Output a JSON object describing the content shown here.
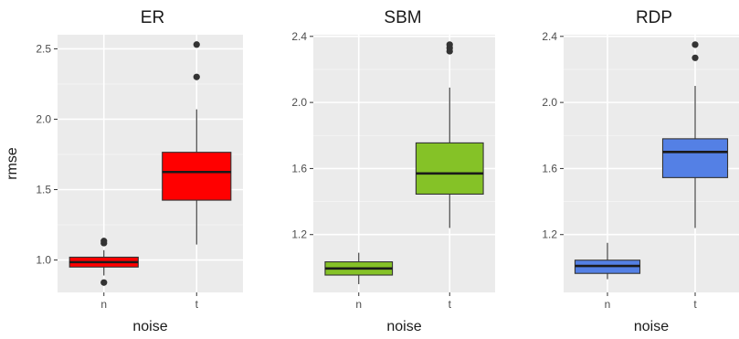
{
  "chart_data": [
    {
      "type": "box",
      "title": "ER",
      "xlabel": "noise",
      "ylabel": "rmse",
      "categories": [
        "n",
        "t"
      ],
      "ylim": [
        0.77,
        2.6
      ],
      "yticks": [
        1.0,
        1.5,
        2.0,
        2.5
      ],
      "ytick_labels": [
        "1.0",
        "1.5",
        "2.0",
        "2.5"
      ],
      "boxes": [
        {
          "category": "n",
          "min": 0.89,
          "q1": 0.95,
          "median": 0.985,
          "q3": 1.02,
          "max": 1.07,
          "outliers": [
            1.12,
            1.135,
            0.84
          ],
          "color": "#ff0000"
        },
        {
          "category": "t",
          "min": 1.11,
          "q1": 1.425,
          "median": 1.625,
          "q3": 1.765,
          "max": 2.07,
          "outliers": [
            2.3,
            2.53
          ],
          "color": "#ff0000"
        }
      ]
    },
    {
      "type": "box",
      "title": "SBM",
      "xlabel": "noise",
      "ylabel": "",
      "categories": [
        "n",
        "t"
      ],
      "ylim": [
        0.85,
        2.41
      ],
      "yticks": [
        1.2,
        1.6,
        2.0,
        2.4
      ],
      "ytick_labels": [
        "1.2",
        "1.6",
        "2.0",
        "2.4"
      ],
      "boxes": [
        {
          "category": "n",
          "min": 0.9,
          "q1": 0.955,
          "median": 0.995,
          "q3": 1.035,
          "max": 1.09,
          "outliers": [],
          "color": "#85c227"
        },
        {
          "category": "t",
          "min": 1.24,
          "q1": 1.445,
          "median": 1.57,
          "q3": 1.755,
          "max": 2.09,
          "outliers": [
            2.31,
            2.33,
            2.35
          ],
          "color": "#85c227"
        }
      ]
    },
    {
      "type": "box",
      "title": "RDP",
      "xlabel": "noise",
      "ylabel": "",
      "categories": [
        "n",
        "t"
      ],
      "ylim": [
        0.85,
        2.41
      ],
      "yticks": [
        1.2,
        1.6,
        2.0,
        2.4
      ],
      "ytick_labels": [
        "1.2",
        "1.6",
        "2.0",
        "2.4"
      ],
      "boxes": [
        {
          "category": "n",
          "min": 0.93,
          "q1": 0.965,
          "median": 1.01,
          "q3": 1.045,
          "max": 1.15,
          "outliers": [],
          "color": "#5480e5"
        },
        {
          "category": "t",
          "min": 1.24,
          "q1": 1.545,
          "median": 1.7,
          "q3": 1.78,
          "max": 2.1,
          "outliers": [
            2.27,
            2.35
          ],
          "color": "#5480e5"
        }
      ]
    }
  ]
}
